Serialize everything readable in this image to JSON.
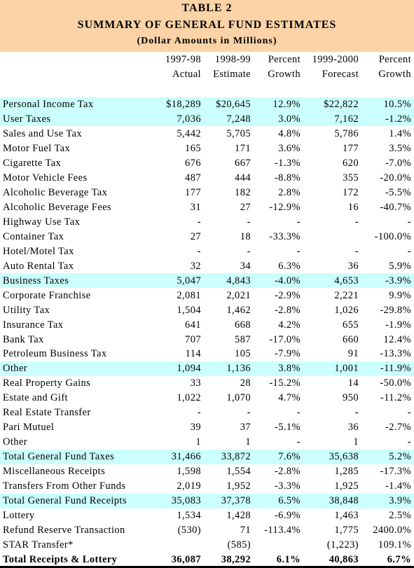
{
  "header": {
    "title": "TABLE 2",
    "subtitle": "SUMMARY OF GENERAL FUND ESTIMATES",
    "note": "(Dollar Amounts in Millions)"
  },
  "table": {
    "columns": [
      [
        "1997-98",
        "Actual"
      ],
      [
        "1998-99",
        "Estimate"
      ],
      [
        "Percent",
        "Growth"
      ],
      [
        "1999-2000",
        "Forecast"
      ],
      [
        "Percent",
        "Growth"
      ]
    ],
    "highlighted_rows": [
      0,
      1,
      12,
      18,
      24,
      27
    ],
    "bold_rows": [
      31
    ],
    "rows": [
      [
        "Personal Income Tax",
        "$18,289",
        "$20,645",
        "12.9%",
        "$22,822",
        "10.5%"
      ],
      [
        "User Taxes",
        "7,036",
        "7,248",
        "3.0%",
        "7,162",
        "-1.2%"
      ],
      [
        "Sales and Use Tax",
        "5,442",
        "5,705",
        "4.8%",
        "5,786",
        "1.4%"
      ],
      [
        "Motor Fuel Tax",
        "165",
        "171",
        "3.6%",
        "177",
        "3.5%"
      ],
      [
        "Cigarette Tax",
        "676",
        "667",
        "-1.3%",
        "620",
        "-7.0%"
      ],
      [
        "Motor Vehicle Fees",
        "487",
        "444",
        "-8.8%",
        "355",
        "-20.0%"
      ],
      [
        "Alcoholic Beverage Tax",
        "177",
        "182",
        "2.8%",
        "172",
        "-5.5%"
      ],
      [
        "Alcoholic Beverage Fees",
        "31",
        "27",
        "-12.9%",
        "16",
        "-40.7%"
      ],
      [
        "Highway Use Tax",
        "-",
        "-",
        "-",
        "-",
        "-"
      ],
      [
        "Container Tax",
        "27",
        "18",
        "-33.3%",
        null,
        "-100.0%"
      ],
      [
        "Hotel/Motel Tax",
        "-",
        "-",
        "-",
        "-",
        "-"
      ],
      [
        "Auto Rental Tax",
        "32",
        "34",
        "6.3%",
        "36",
        "5.9%"
      ],
      [
        "Business Taxes",
        "5,047",
        "4,843",
        "-4.0%",
        "4,653",
        "-3.9%"
      ],
      [
        "Corporate Franchise",
        "2,081",
        "2,021",
        "-2.9%",
        "2,221",
        "9.9%"
      ],
      [
        "Utility Tax",
        "1,504",
        "1,462",
        "-2.8%",
        "1,026",
        "-29.8%"
      ],
      [
        "Insurance Tax",
        "641",
        "668",
        "4.2%",
        "655",
        "-1.9%"
      ],
      [
        "Bank Tax",
        "707",
        "587",
        "-17.0%",
        "660",
        "12.4%"
      ],
      [
        "Petroleum Business Tax",
        "114",
        "105",
        "-7.9%",
        "91",
        "-13.3%"
      ],
      [
        "Other",
        "1,094",
        "1,136",
        "3.8%",
        "1,001",
        "-11.9%"
      ],
      [
        "Real Property Gains",
        "33",
        "28",
        "-15.2%",
        "14",
        "-50.0%"
      ],
      [
        "Estate and Gift",
        "1,022",
        "1,070",
        "4.7%",
        "950",
        "-11.2%"
      ],
      [
        "Real Estate Transfer",
        "-",
        "-",
        "-",
        "-",
        "-"
      ],
      [
        "Pari Mutuel",
        "39",
        "37",
        "-5.1%",
        "36",
        "-2.7%"
      ],
      [
        "Other",
        "1",
        "1",
        "-",
        "1",
        "-"
      ],
      [
        "Total General Fund Taxes",
        "31,466",
        "33,872",
        "7.6%",
        "35,638",
        "5.2%"
      ],
      [
        "Miscellaneous Receipts",
        "1,598",
        "1,554",
        "-2.8%",
        "1,285",
        "-17.3%"
      ],
      [
        "Transfers From Other Funds",
        "2,019",
        "1,952",
        "-3.3%",
        "1,925",
        "-1.4%"
      ],
      [
        "Total General Fund Receipts",
        "35,083",
        "37,378",
        "6.5%",
        "38,848",
        "3.9%"
      ],
      [
        "Lottery",
        "1,534",
        "1,428",
        "-6.9%",
        "1,463",
        "2.5%"
      ],
      [
        "Refund Reserve Transaction",
        "(530)",
        "71",
        "-113.4%",
        "1,775",
        "2400.0%"
      ],
      [
        "STAR Transfer*",
        null,
        "(585)",
        null,
        "(1,223)",
        "109.1%"
      ],
      [
        "Total Receipts & Lottery",
        "36,087",
        "38,292",
        "6.1%",
        "40,863",
        "6.7%"
      ]
    ]
  }
}
